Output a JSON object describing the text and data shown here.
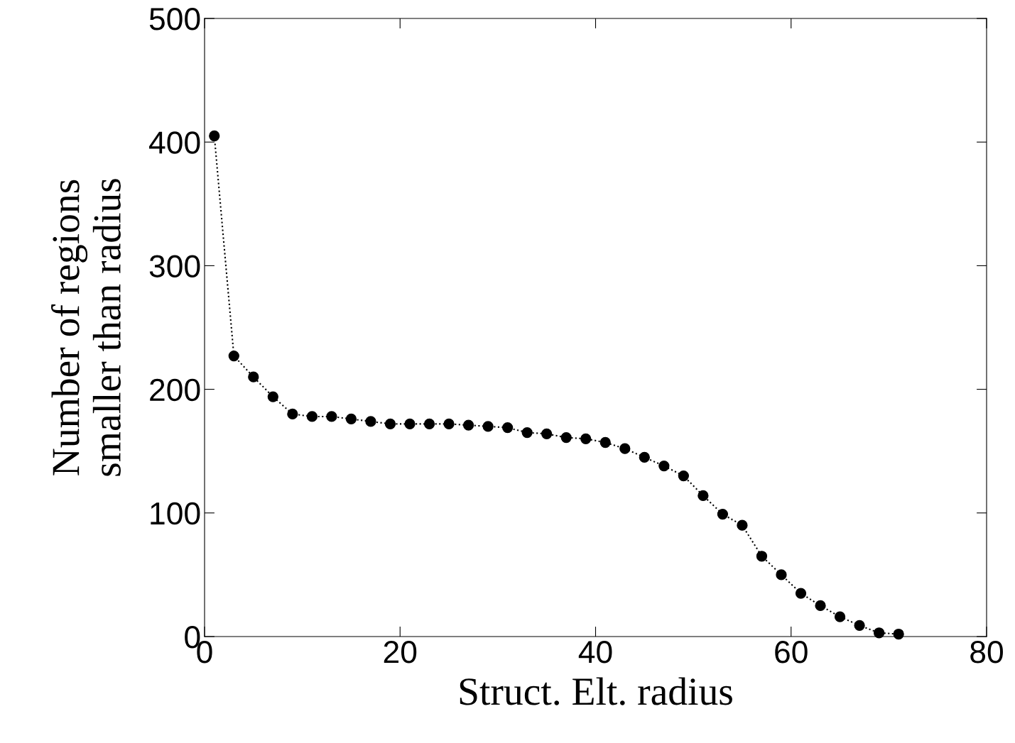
{
  "chart_data": {
    "type": "line",
    "xlabel": "Struct. Elt. radius",
    "ylabel": "Number of regions\nsmaller than radius",
    "x": [
      1,
      3,
      5,
      7,
      9,
      11,
      13,
      15,
      17,
      19,
      21,
      23,
      25,
      27,
      29,
      31,
      33,
      35,
      37,
      39,
      41,
      43,
      45,
      47,
      49,
      51,
      53,
      55,
      57,
      59,
      61,
      63,
      65,
      67,
      69,
      71
    ],
    "series": [
      {
        "color": "#000000",
        "values": [
          405,
          227,
          210,
          194,
          180,
          178,
          178,
          176,
          174,
          172,
          172,
          172,
          172,
          171,
          170,
          169,
          165,
          164,
          161,
          160,
          157,
          152,
          145,
          138,
          130,
          114,
          99,
          90,
          65,
          50,
          35,
          25,
          16,
          9,
          3,
          2
        ]
      }
    ],
    "xlim": [
      0,
      80
    ],
    "xticks": [
      0,
      20,
      40,
      60,
      80
    ],
    "ylim": [
      0,
      500
    ],
    "yticks": [
      0,
      100,
      200,
      300,
      400,
      500
    ],
    "marker": "circle",
    "line_style": "dotted",
    "grid": false,
    "legend": false
  }
}
